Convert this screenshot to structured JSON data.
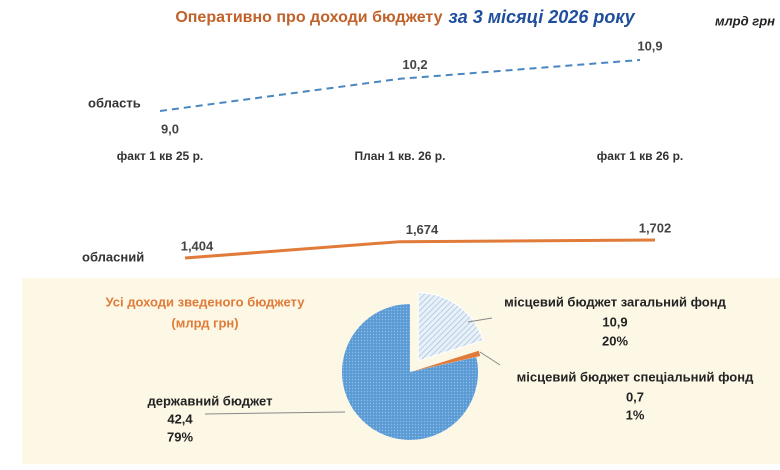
{
  "title": "Оперативно про доходи бюджету",
  "title_emphasis": "за 3 місяці 2026 року",
  "unit": "млрд грн",
  "chart_data": [
    {
      "type": "line",
      "dashed": true,
      "categories": [
        "факт 1 кв 25 р.",
        "План 1 кв. 26 р.",
        "факт 1 кв 26 р."
      ],
      "series": [
        {
          "name": "область",
          "color": "#4a86c0",
          "values": [
            9.0,
            10.2,
            10.9
          ],
          "value_labels": [
            "9,0",
            "10,2",
            "10,9"
          ]
        }
      ]
    },
    {
      "type": "line",
      "dashed": false,
      "series": [
        {
          "name": "обласний",
          "color": "#e07b39",
          "values": [
            1.404,
            1.674,
            1.702
          ],
          "value_labels": [
            "1,404",
            "1,674",
            "1,702"
          ]
        }
      ]
    },
    {
      "type": "pie",
      "title": "Усі доходи зведеного бюджету",
      "subtitle": "(млрд грн)",
      "categories": [
        "місцевий бюджет загальний фонд",
        "місцевий бюджет спеціальний фонд",
        "державний бюджет"
      ],
      "values": [
        10.9,
        0.7,
        42.4
      ],
      "value_labels": [
        "10,9",
        "0,7",
        "42,4"
      ],
      "percents": [
        20,
        1,
        79
      ],
      "percent_labels": [
        "20%",
        "1%",
        "79%"
      ],
      "colors": [
        "#dbe7f3",
        "#e07b39",
        "#5b9bd5"
      ]
    }
  ]
}
